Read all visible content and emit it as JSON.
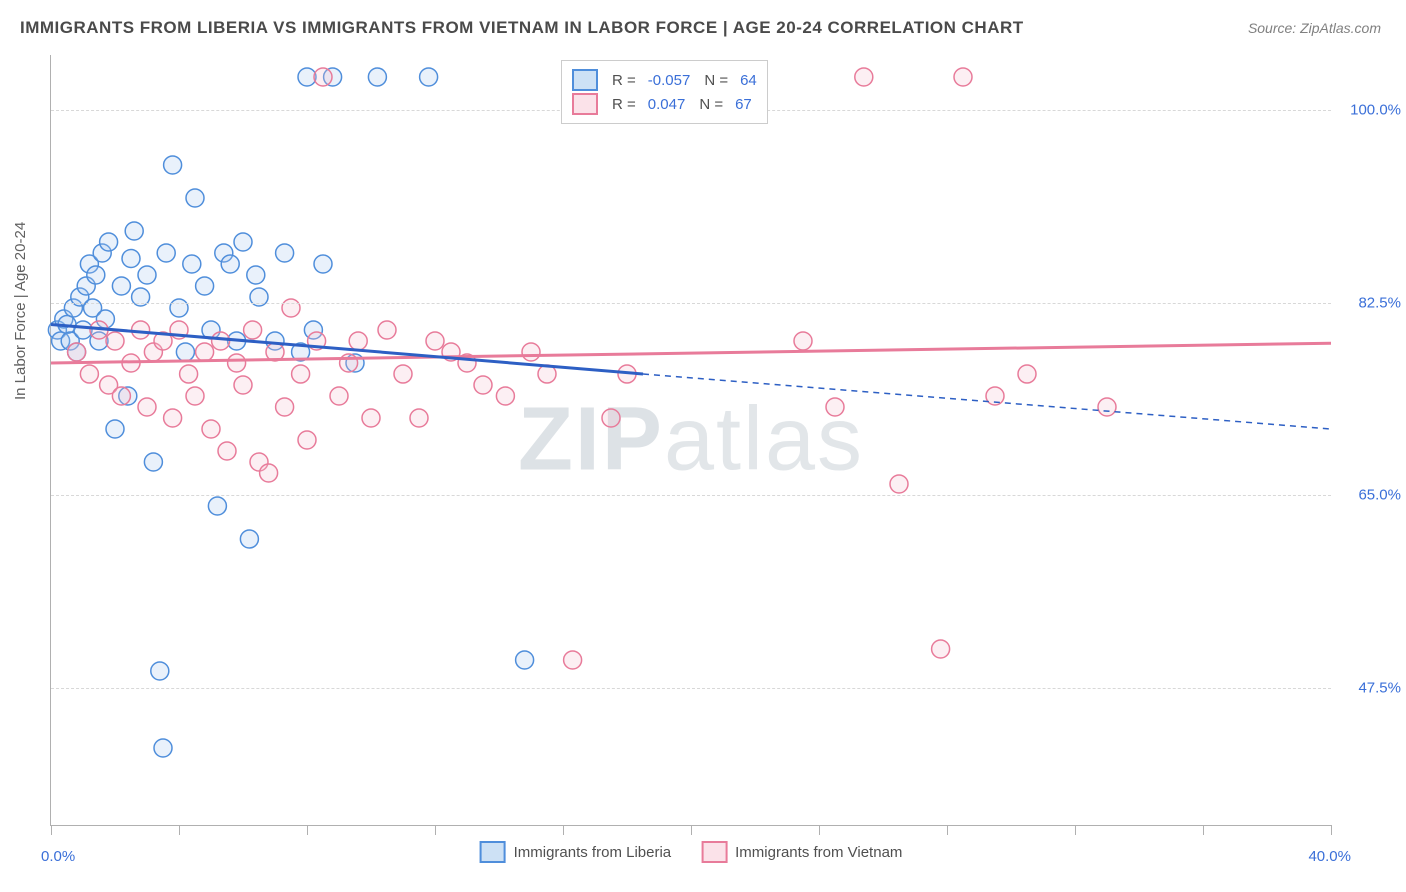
{
  "title": "IMMIGRANTS FROM LIBERIA VS IMMIGRANTS FROM VIETNAM IN LABOR FORCE | AGE 20-24 CORRELATION CHART",
  "source": "Source: ZipAtlas.com",
  "ylabel": "In Labor Force | Age 20-24",
  "watermark_bold": "ZIP",
  "watermark_light": "atlas",
  "chart": {
    "type": "scatter-with-trend",
    "xlim": [
      0,
      40
    ],
    "ylim": [
      35,
      105
    ],
    "yticks": [
      47.5,
      65.0,
      82.5,
      100.0
    ],
    "ytick_labels": [
      "47.5%",
      "65.0%",
      "82.5%",
      "100.0%"
    ],
    "xtick_positions": [
      0,
      4,
      8,
      12,
      16,
      20,
      24,
      28,
      32,
      36,
      40
    ],
    "xtick_labels": {
      "start": "0.0%",
      "end": "40.0%"
    },
    "background_color": "#ffffff",
    "grid_color": "#d8d8d8",
    "axis_color": "#b0b0b0",
    "marker_radius": 9,
    "marker_fill_opacity": 0.25,
    "marker_stroke_width": 1.5,
    "trend_stroke_width": 3
  },
  "series": [
    {
      "name": "Immigrants from Liberia",
      "color_stroke": "#4f8edb",
      "color_fill": "#a7c8ee",
      "swatch_fill": "#cde1f5",
      "R": "-0.057",
      "N": "64",
      "trend": {
        "x1": 0,
        "y1": 80.5,
        "x2": 18.5,
        "y2": 76.0,
        "x2_ext": 40,
        "y2_ext": 71.0
      },
      "points": [
        [
          0.2,
          80
        ],
        [
          0.3,
          79
        ],
        [
          0.4,
          81
        ],
        [
          0.5,
          80.5
        ],
        [
          0.6,
          79
        ],
        [
          0.7,
          82
        ],
        [
          0.8,
          78
        ],
        [
          0.9,
          83
        ],
        [
          1.0,
          80
        ],
        [
          1.1,
          84
        ],
        [
          1.2,
          86
        ],
        [
          1.3,
          82
        ],
        [
          1.4,
          85
        ],
        [
          1.5,
          79
        ],
        [
          1.6,
          87
        ],
        [
          1.7,
          81
        ],
        [
          1.8,
          88
        ],
        [
          2.0,
          71
        ],
        [
          2.2,
          84
        ],
        [
          2.4,
          74
        ],
        [
          2.5,
          86.5
        ],
        [
          2.6,
          89
        ],
        [
          2.8,
          83
        ],
        [
          3.0,
          85
        ],
        [
          3.2,
          68
        ],
        [
          3.4,
          49
        ],
        [
          3.5,
          42
        ],
        [
          3.6,
          87
        ],
        [
          3.8,
          95
        ],
        [
          4.0,
          82
        ],
        [
          4.2,
          78
        ],
        [
          4.4,
          86
        ],
        [
          4.5,
          92
        ],
        [
          4.8,
          84
        ],
        [
          5.0,
          80
        ],
        [
          5.2,
          64
        ],
        [
          5.4,
          87
        ],
        [
          5.6,
          86
        ],
        [
          5.8,
          79
        ],
        [
          6.0,
          88
        ],
        [
          6.2,
          61
        ],
        [
          6.4,
          85
        ],
        [
          6.5,
          83
        ],
        [
          7.0,
          79
        ],
        [
          7.3,
          87
        ],
        [
          7.8,
          78
        ],
        [
          8.0,
          103
        ],
        [
          8.2,
          80
        ],
        [
          8.5,
          86
        ],
        [
          8.8,
          103
        ],
        [
          9.5,
          77
        ],
        [
          10.2,
          103
        ],
        [
          11.8,
          103
        ],
        [
          14.8,
          50
        ]
      ]
    },
    {
      "name": "Immigrants from Vietnam",
      "color_stroke": "#e87b9a",
      "color_fill": "#f4c0cf",
      "swatch_fill": "#fbe2e9",
      "R": "0.047",
      "N": "67",
      "trend": {
        "x1": 0,
        "y1": 77.0,
        "x2": 40,
        "y2": 78.8,
        "x2_ext": 40,
        "y2_ext": 78.8
      },
      "points": [
        [
          0.8,
          78
        ],
        [
          1.2,
          76
        ],
        [
          1.5,
          80
        ],
        [
          1.8,
          75
        ],
        [
          2.0,
          79
        ],
        [
          2.2,
          74
        ],
        [
          2.5,
          77
        ],
        [
          2.8,
          80
        ],
        [
          3.0,
          73
        ],
        [
          3.2,
          78
        ],
        [
          3.5,
          79
        ],
        [
          3.8,
          72
        ],
        [
          4.0,
          80
        ],
        [
          4.3,
          76
        ],
        [
          4.5,
          74
        ],
        [
          4.8,
          78
        ],
        [
          5.0,
          71
        ],
        [
          5.3,
          79
        ],
        [
          5.5,
          69
        ],
        [
          5.8,
          77
        ],
        [
          6.0,
          75
        ],
        [
          6.3,
          80
        ],
        [
          6.5,
          68
        ],
        [
          6.8,
          67
        ],
        [
          7.0,
          78
        ],
        [
          7.3,
          73
        ],
        [
          7.5,
          82
        ],
        [
          7.8,
          76
        ],
        [
          8.0,
          70
        ],
        [
          8.3,
          79
        ],
        [
          8.5,
          103
        ],
        [
          9.0,
          74
        ],
        [
          9.3,
          77
        ],
        [
          9.6,
          79
        ],
        [
          10.0,
          72
        ],
        [
          10.5,
          80
        ],
        [
          11.0,
          76
        ],
        [
          11.5,
          72
        ],
        [
          12.0,
          79
        ],
        [
          12.5,
          78
        ],
        [
          13.0,
          77
        ],
        [
          13.5,
          75
        ],
        [
          14.2,
          74
        ],
        [
          15.0,
          78
        ],
        [
          15.5,
          76
        ],
        [
          16.3,
          50
        ],
        [
          17.5,
          72
        ],
        [
          18.0,
          76
        ],
        [
          23.5,
          79
        ],
        [
          24.5,
          73
        ],
        [
          25.4,
          103
        ],
        [
          26.5,
          66
        ],
        [
          27.8,
          51
        ],
        [
          28.5,
          103
        ],
        [
          29.5,
          74
        ],
        [
          30.5,
          76
        ],
        [
          33.0,
          73
        ]
      ]
    }
  ],
  "legend_bottom": {
    "item1": "Immigrants from Liberia",
    "item2": "Immigrants from Vietnam"
  },
  "legend_top_labels": {
    "R": "R =",
    "N": "N ="
  }
}
